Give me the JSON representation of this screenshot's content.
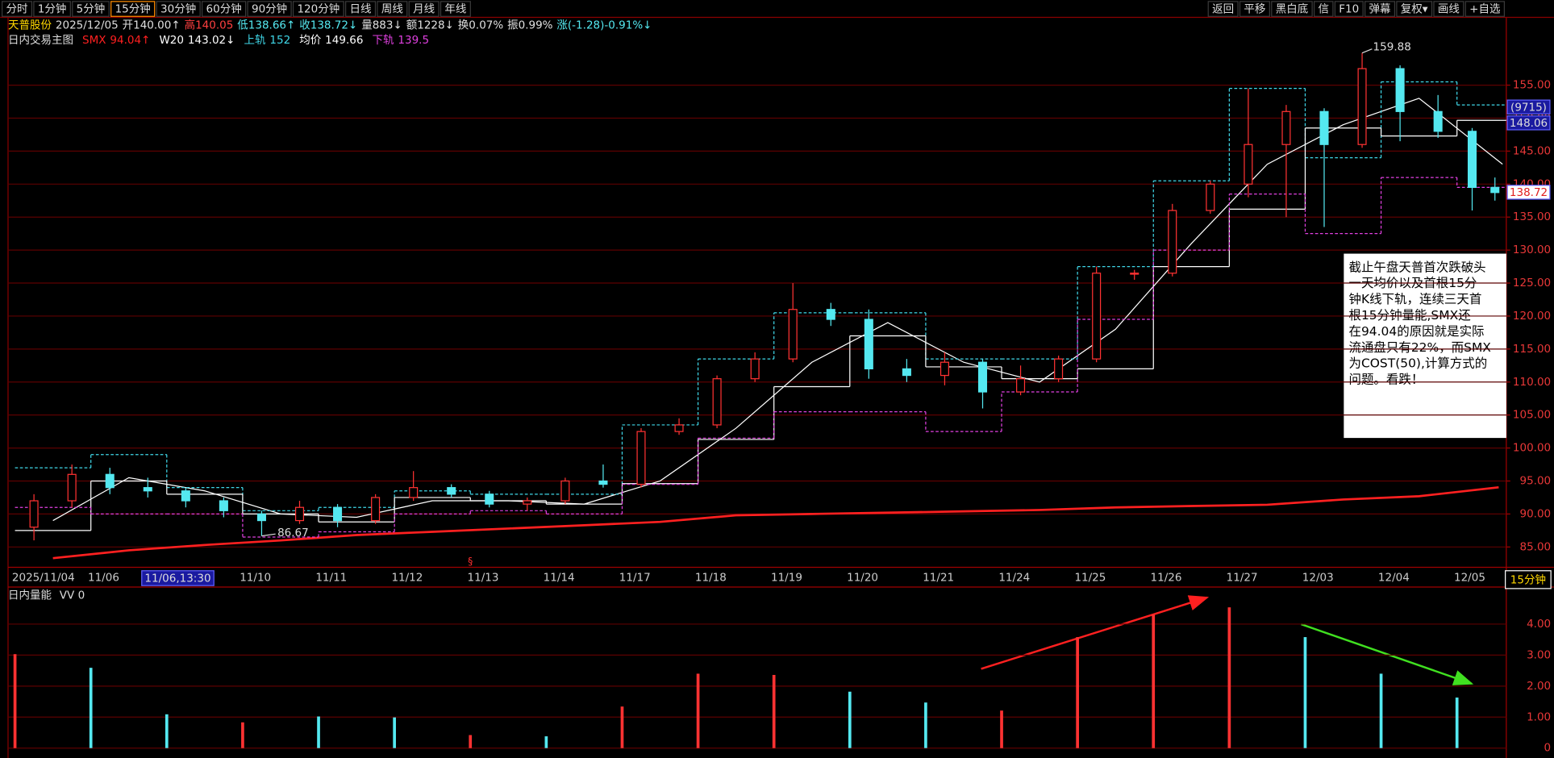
{
  "toolbar": {
    "periods": [
      "分时",
      "1分钟",
      "5分钟",
      "15分钟",
      "30分钟",
      "60分钟",
      "90分钟",
      "120分钟",
      "日线",
      "周线",
      "月线",
      "年线"
    ],
    "selected_period": 3,
    "tools": [
      "返回",
      "平移",
      "黑白底",
      "信",
      "F10",
      "弹幕",
      "复权▾",
      "画线",
      "+自选"
    ]
  },
  "quote": {
    "name": "天普股份",
    "date": "2025/12/05",
    "fields": [
      {
        "text": "开140.00↑",
        "color": "#e0e0e0"
      },
      {
        "text": "高140.05",
        "color": "#ff4040"
      },
      {
        "text": "低138.66↑",
        "color": "#54e8f0"
      },
      {
        "text": "收138.72↓",
        "color": "#54e8f0"
      },
      {
        "text": "量883↓",
        "color": "#e0e0e0"
      },
      {
        "text": "额1228↓",
        "color": "#e0e0e0"
      },
      {
        "text": "换0.07%",
        "color": "#e0e0e0"
      },
      {
        "text": "振0.99%",
        "color": "#e0e0e0"
      },
      {
        "text": "涨(-1.28)-0.91%↓",
        "color": "#54e8f0"
      }
    ]
  },
  "chart_data": [
    {
      "type": "candlestick",
      "title": "日内交易主图",
      "categories": [
        "2025/11/04",
        "11/06",
        null,
        "11/10",
        "11/11",
        "11/12",
        "11/13",
        "11/14",
        "11/17",
        "11/18",
        "11/19",
        "11/20",
        "11/21",
        "11/24",
        "11/25",
        "11/26",
        "11/27",
        "12/03",
        "12/04",
        "12/05"
      ],
      "xlim": [
        0,
        19.65
      ],
      "ylim": [
        82,
        164.9
      ],
      "yticks": [
        {
          "value": 85,
          "label": "85.00"
        },
        {
          "value": 90,
          "label": "90.00"
        },
        {
          "value": 95,
          "label": "95.00"
        },
        {
          "value": 100,
          "label": "100.00"
        },
        {
          "value": 105,
          "label": "105.00"
        },
        {
          "value": 110,
          "label": "110.00"
        },
        {
          "value": 115,
          "label": "115.00"
        },
        {
          "value": 120,
          "label": "120.00"
        },
        {
          "value": 125,
          "label": "125.00"
        },
        {
          "value": 130,
          "label": "130.00"
        },
        {
          "value": 135,
          "label": "135.00"
        },
        {
          "value": 140,
          "label": "140.00"
        },
        {
          "value": 145,
          "label": "145.00"
        },
        {
          "value": 150,
          "label": "150.00"
        },
        {
          "value": 155,
          "label": "155.00"
        }
      ],
      "grid": true,
      "grid_color": "#5c0000",
      "up_color": "#ff3232",
      "down_color": "#54e8f0",
      "candles": {
        "x": [
          0.25,
          0.75,
          1.25,
          1.75,
          2.25,
          2.75,
          3.25,
          3.75,
          4.25,
          4.75,
          5.25,
          5.75,
          6.25,
          6.75,
          7.25,
          7.75,
          8.25,
          8.75,
          9.25,
          9.75,
          10.25,
          10.75,
          11.25,
          11.75,
          12.25,
          12.75,
          13.25,
          13.75,
          14.25,
          14.75,
          15.25,
          15.75,
          16.25,
          16.75,
          17.25,
          17.75,
          18.25,
          18.75,
          19.2,
          19.5
        ],
        "open": [
          88,
          92,
          96,
          94,
          93.5,
          92,
          90,
          89,
          91,
          89,
          92.5,
          94,
          93,
          91.5,
          92,
          95,
          94.5,
          102.5,
          103.5,
          110.5,
          113.5,
          121,
          119.5,
          112,
          111,
          113,
          108.5,
          110.5,
          113.5,
          126.5,
          126.5,
          136,
          140,
          146,
          151,
          146,
          157.5,
          151,
          148,
          139.5
        ],
        "high": [
          93,
          97.5,
          97,
          95.5,
          94,
          92.5,
          90.5,
          92,
          91.5,
          93,
          96.5,
          94.5,
          93.5,
          92.5,
          95.5,
          97.5,
          103,
          104.5,
          111,
          114.5,
          125,
          122,
          121,
          113.5,
          114.5,
          113.5,
          112.5,
          114,
          127.5,
          127,
          137,
          140.5,
          154.5,
          152,
          151.5,
          159.88,
          158,
          153.5,
          148.5,
          141
        ],
        "low": [
          86,
          91,
          93,
          92.5,
          91,
          89.5,
          86.67,
          88.5,
          88,
          88.5,
          92,
          92.5,
          91,
          90.5,
          91.5,
          94,
          94,
          102,
          103,
          110,
          113,
          118.5,
          110.5,
          110,
          109.5,
          106,
          108,
          110,
          113,
          125.5,
          126,
          135.5,
          138,
          135,
          133.5,
          145.5,
          146.5,
          147,
          136,
          137.5
        ],
        "close": [
          92,
          96,
          94,
          93.5,
          92,
          90.5,
          89,
          91,
          89,
          92.5,
          94,
          93,
          91.5,
          92,
          95,
          94.5,
          102.5,
          103.5,
          110.5,
          113.5,
          121,
          119.5,
          112,
          111,
          113,
          108.5,
          110.5,
          113.5,
          126.5,
          126.5,
          136,
          140,
          146,
          151,
          146,
          157.5,
          151,
          148,
          139.5,
          138.72
        ]
      },
      "series": [
        {
          "name": "SMX",
          "legend_value": 94.04,
          "trend": "↑",
          "style": "line",
          "color": "#ff2020",
          "width": 2.2,
          "x": [
            0.5,
            1.5,
            2.5,
            3.5,
            4.5,
            5.5,
            6.5,
            7.5,
            8.5,
            9.5,
            10.5,
            11.5,
            12.5,
            13.5,
            14.5,
            15.5,
            16.5,
            17.5,
            18.5,
            19.55
          ],
          "values": [
            83.3,
            84.5,
            85.3,
            86,
            86.8,
            87.3,
            87.8,
            88.3,
            88.8,
            89.8,
            90,
            90.2,
            90.4,
            90.6,
            91,
            91.2,
            91.4,
            92.2,
            92.7,
            94.04
          ]
        },
        {
          "name": "W20",
          "legend_value": 143.02,
          "trend": "↓",
          "style": "line",
          "color": "#ffffff",
          "width": 1,
          "x": [
            0.5,
            1.5,
            2.5,
            3.5,
            4.5,
            5.5,
            6.5,
            7.5,
            8.5,
            9.5,
            10.5,
            11.5,
            12.5,
            13.5,
            14.5,
            15.5,
            16.5,
            17.5,
            18.5,
            19.6
          ],
          "values": [
            89,
            95.5,
            93.5,
            90,
            89.5,
            92,
            92,
            91.5,
            95,
            103,
            113,
            119,
            113,
            110,
            118,
            131,
            143,
            149,
            153,
            143.02
          ]
        },
        {
          "name": "上轨",
          "legend_value": 152,
          "style": "step",
          "dashed": true,
          "color": "#3fd7e8",
          "width": 1,
          "values": [
            97,
            99,
            94,
            90.5,
            91,
            93.5,
            93,
            93,
            103.5,
            113.5,
            120.5,
            120.5,
            113.5,
            113.5,
            127.5,
            140.5,
            154.5,
            144,
            155.5,
            152
          ]
        },
        {
          "name": "均价",
          "legend_value": 149.66,
          "style": "step",
          "dashed": false,
          "color": "#ffffff",
          "width": 1,
          "values": [
            87.5,
            95,
            93,
            90,
            88.8,
            92.5,
            92,
            91.5,
            94.6,
            101.3,
            109.3,
            117,
            112.3,
            110.5,
            112,
            127.5,
            136.2,
            148.5,
            147.3,
            149.66
          ]
        },
        {
          "name": "下轨",
          "legend_value": 139.5,
          "style": "step",
          "dashed": true,
          "color": "#e040e0",
          "width": 1,
          "values": [
            91,
            90,
            90,
            86.5,
            87.3,
            90,
            90.5,
            90,
            94.5,
            101.5,
            105.5,
            105.5,
            102.5,
            108.5,
            119.5,
            130,
            138.5,
            132.5,
            141,
            139.5
          ]
        }
      ],
      "cursor_label": "11/06,13:30",
      "marker": "§",
      "price_tags": [
        "(9715)",
        148.06,
        138.72
      ]
    },
    {
      "type": "bar",
      "title": "日内量能",
      "indicator": "VV 0",
      "x": [
        0,
        1,
        2,
        3,
        4,
        5,
        6,
        7,
        8,
        9,
        10,
        11,
        12,
        13,
        14,
        15,
        16,
        17,
        18,
        19
      ],
      "xlim": [
        0,
        19.65
      ],
      "values": [
        3.03,
        2.59,
        1.09,
        0.83,
        1.02,
        0.99,
        0.42,
        0.38,
        1.34,
        2.4,
        2.36,
        1.82,
        1.47,
        1.21,
        3.58,
        4.31,
        4.54,
        3.58,
        2.4,
        1.63
      ],
      "colors": [
        "#ff3232",
        "#54e8f0",
        "#54e8f0",
        "#ff3232",
        "#54e8f0",
        "#54e8f0",
        "#ff3232",
        "#54e8f0",
        "#ff3232",
        "#ff3232",
        "#ff3232",
        "#54e8f0",
        "#54e8f0",
        "#ff3232",
        "#ff3232",
        "#ff3232",
        "#ff3232",
        "#54e8f0",
        "#54e8f0",
        "#54e8f0"
      ],
      "ylim": [
        0,
        5.05
      ],
      "yticks": [
        0,
        {
          "value": 1,
          "label": "1.00"
        },
        {
          "value": 2,
          "label": "2.00"
        },
        {
          "value": 3,
          "label": "3.00"
        },
        {
          "value": 4,
          "label": "4.00"
        }
      ],
      "grid": true,
      "grid_color": "#5c0000"
    }
  ],
  "annotation": {
    "lines": [
      "截止午盘天普首次跌破头",
      "一天均价以及首根15分",
      "钟K线下轨，连续三天首",
      "根15分钟量能,SMX还",
      "在94.04的原因就是实际",
      "流通盘只有22%，而SMX",
      "为COST(50),计算方式的",
      "问题。看跌！"
    ]
  },
  "period_badge": "15分钟"
}
